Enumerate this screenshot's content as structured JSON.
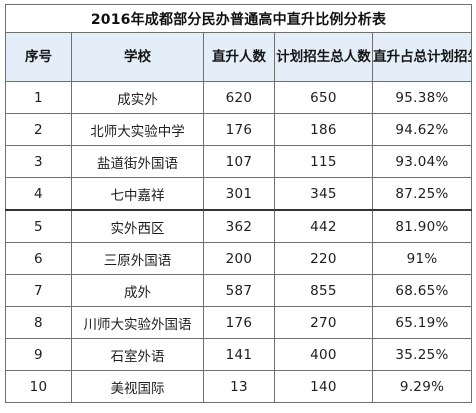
{
  "title": "2016年成都部分民办普通高中直升比例分析表",
  "columns": {
    "index": "序号",
    "school": "学校",
    "direct": "直升人数",
    "total": "计划招生总人数",
    "ratio": "直升占总计划招生比例"
  },
  "rows": [
    {
      "index": "1",
      "school": "成实外",
      "direct": "620",
      "total": "650",
      "ratio": "95.38%"
    },
    {
      "index": "2",
      "school": "北师大实验中学",
      "direct": "176",
      "total": "186",
      "ratio": "94.62%"
    },
    {
      "index": "3",
      "school": "盐道街外国语",
      "direct": "107",
      "total": "115",
      "ratio": "93.04%"
    },
    {
      "index": "4",
      "school": "七中嘉祥",
      "direct": "301",
      "total": "345",
      "ratio": "87.25%"
    },
    {
      "index": "5",
      "school": "实外西区",
      "direct": "362",
      "total": "442",
      "ratio": "81.90%"
    },
    {
      "index": "6",
      "school": "三原外国语",
      "direct": "200",
      "total": "220",
      "ratio": "91%"
    },
    {
      "index": "7",
      "school": "成外",
      "direct": "587",
      "total": "855",
      "ratio": "68.65%"
    },
    {
      "index": "8",
      "school": "川师大实验外国语",
      "direct": "176",
      "total": "270",
      "ratio": "65.19%"
    },
    {
      "index": "9",
      "school": "石室外语",
      "direct": "141",
      "total": "400",
      "ratio": "35.25%"
    },
    {
      "index": "10",
      "school": "美视国际",
      "direct": "13",
      "total": "140",
      "ratio": "9.29%"
    }
  ],
  "colors": {
    "header_bg": "#e3eef8",
    "border": "#6f6f6f",
    "divider": "#333333"
  }
}
